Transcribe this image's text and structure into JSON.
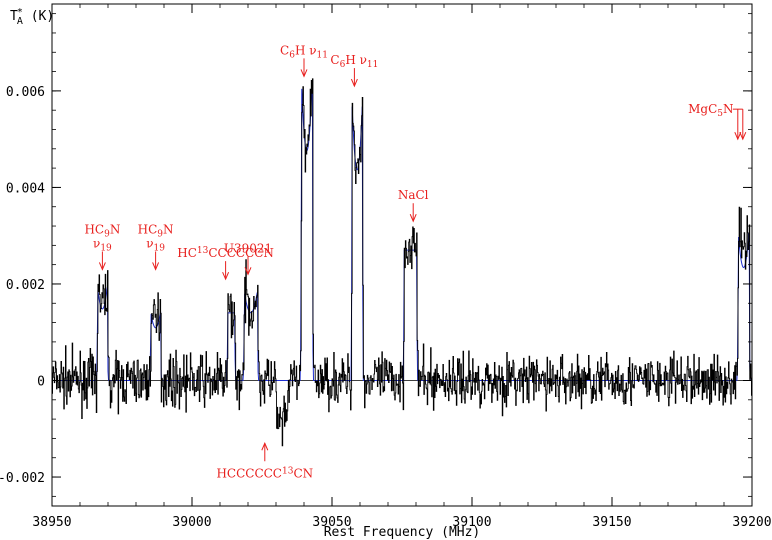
{
  "chart_data": {
    "type": "line",
    "xlabel": "Rest Frequency (MHz)",
    "ylabel_main": "T",
    "ylabel_sub": "A",
    "ylabel_sup": "*",
    "ylabel_unit": "(K)",
    "xlim": [
      38950,
      39200
    ],
    "ylim": [
      -0.0026,
      0.0078
    ],
    "x_ticks": [
      38950,
      39000,
      39050,
      39100,
      39150,
      39200
    ],
    "x_tick_labels": [
      "38950",
      "39000",
      "39050",
      "39100",
      "39150",
      "39200"
    ],
    "y_ticks": [
      -0.002,
      0,
      0.002,
      0.004,
      0.006
    ],
    "y_tick_labels": [
      "-0.002",
      "0",
      "0.002",
      "0.004",
      "0.006"
    ],
    "series": [
      {
        "role": "observed",
        "color": "#000000",
        "components": [
          {
            "center": 38968,
            "halfwidth": 1.8,
            "peak": 0.002,
            "horns": true
          },
          {
            "center": 38987,
            "halfwidth": 1.8,
            "peak": 0.0015,
            "horns": true
          },
          {
            "center": 39014,
            "halfwidth": 1.3,
            "peak": 0.0014,
            "horns": false
          },
          {
            "center": 39021,
            "halfwidth": 2.4,
            "peak": 0.0019,
            "horns": true
          },
          {
            "center": 39041,
            "halfwidth": 2.0,
            "peak": 0.0062,
            "horns": true
          },
          {
            "center": 39059,
            "halfwidth": 1.9,
            "peak": 0.0057,
            "horns": true
          },
          {
            "center": 39078,
            "halfwidth": 2.3,
            "peak": 0.0028,
            "horns": false
          },
          {
            "center": 39197,
            "halfwidth": 2.0,
            "peak": 0.0034,
            "horns": true
          },
          {
            "center": 39032,
            "halfwidth": 2.0,
            "peak": -0.0009,
            "horns": false
          }
        ],
        "noise_rms": 0.00045
      },
      {
        "role": "model",
        "color": "#1f2fd0",
        "components": [
          {
            "center": 38968,
            "halfwidth": 1.8,
            "peak": 0.0019,
            "horns": true
          },
          {
            "center": 38987,
            "halfwidth": 1.8,
            "peak": 0.0014,
            "horns": true
          },
          {
            "center": 39014,
            "halfwidth": 1.3,
            "peak": 0.0014,
            "horns": false
          },
          {
            "center": 39021,
            "halfwidth": 2.4,
            "peak": 0.0018,
            "horns": true
          },
          {
            "center": 39041,
            "halfwidth": 2.0,
            "peak": 0.0061,
            "horns": true
          },
          {
            "center": 39059,
            "halfwidth": 1.9,
            "peak": 0.0056,
            "horns": true
          },
          {
            "center": 39078,
            "halfwidth": 2.3,
            "peak": 0.0027,
            "horns": false
          },
          {
            "center": 39197,
            "halfwidth": 2.0,
            "peak": 0.003,
            "horns": true
          }
        ]
      }
    ],
    "annotations": [
      {
        "name": "hc9n-1",
        "x": 38968,
        "y": 0.0023,
        "lines": [
          [
            {
              "t": "HC"
            },
            {
              "t": "9",
              "sub": true
            },
            {
              "t": "N"
            }
          ],
          [
            {
              "t": "ν"
            },
            {
              "t": "19",
              "sub": true
            }
          ]
        ],
        "direction": "down"
      },
      {
        "name": "hc9n-2",
        "x": 38987,
        "y": 0.0023,
        "lines": [
          [
            {
              "t": "HC"
            },
            {
              "t": "9",
              "sub": true
            },
            {
              "t": "N"
            }
          ],
          [
            {
              "t": "ν"
            },
            {
              "t": "19",
              "sub": true
            }
          ]
        ],
        "direction": "down"
      },
      {
        "name": "hc13-upper",
        "x": 39012,
        "y": 0.0021,
        "lines": [
          [
            {
              "t": "HC"
            },
            {
              "t": "13",
              "sup": true
            },
            {
              "t": "CCCCCCN"
            }
          ]
        ],
        "direction": "down"
      },
      {
        "name": "u39021",
        "x": 39020,
        "y": 0.0022,
        "lines": [
          [
            {
              "t": "U39021"
            }
          ]
        ],
        "direction": "down"
      },
      {
        "name": "c6h-1",
        "x": 39040,
        "y": 0.0063,
        "lines": [
          [
            {
              "t": "C"
            },
            {
              "t": "6",
              "sub": true
            },
            {
              "t": "H  ν"
            },
            {
              "t": "11",
              "sub": true
            }
          ]
        ],
        "direction": "down"
      },
      {
        "name": "c6h-2",
        "x": 39058,
        "y": 0.0061,
        "lines": [
          [
            {
              "t": "C"
            },
            {
              "t": "6",
              "sub": true
            },
            {
              "t": "H  ν"
            },
            {
              "t": "11",
              "sub": true
            }
          ]
        ],
        "direction": "down"
      },
      {
        "name": "nacl",
        "x": 39079,
        "y": 0.0033,
        "lines": [
          [
            {
              "t": "NaCl"
            }
          ]
        ],
        "direction": "down"
      },
      {
        "name": "mgc5n",
        "x": 39196,
        "y": 0.005,
        "lines": [
          [
            {
              "t": "MgC"
            },
            {
              "t": "5",
              "sub": true
            },
            {
              "t": "N"
            }
          ]
        ],
        "direction": "down-double"
      },
      {
        "name": "hc13-lower",
        "x": 39026,
        "y": -0.0013,
        "lines": [
          [
            {
              "t": "HCCCCCC"
            },
            {
              "t": "13",
              "sup": true
            },
            {
              "t": "CN"
            }
          ]
        ],
        "direction": "up"
      }
    ]
  }
}
